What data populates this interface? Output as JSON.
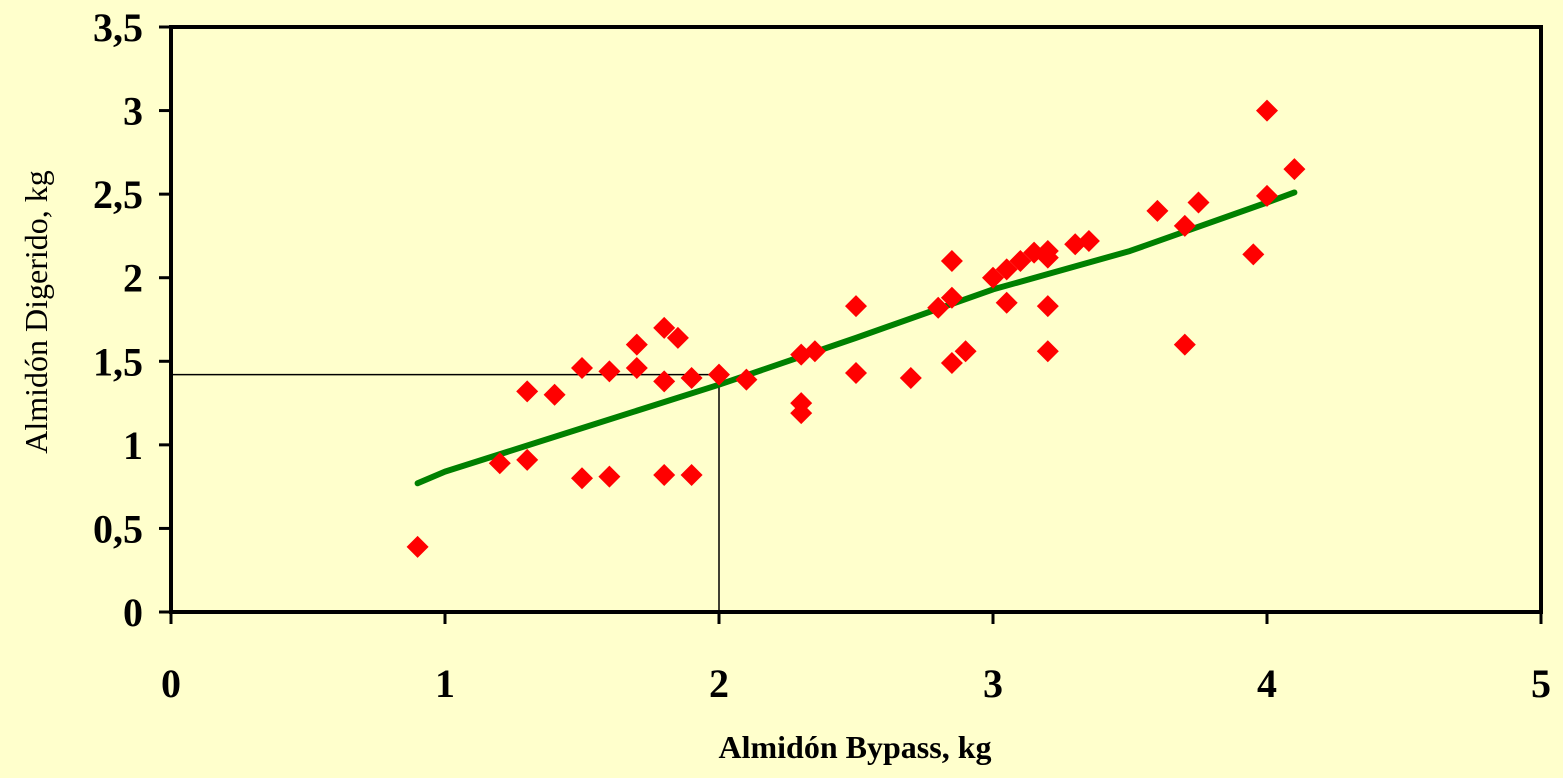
{
  "chart_data": {
    "type": "scatter",
    "title": "",
    "xlabel": "Almidón Bypass, kg",
    "ylabel": "Almidón Digerido, kg",
    "xlim": [
      0,
      5
    ],
    "ylim": [
      0,
      3.5
    ],
    "x_ticks": [
      "0",
      "1",
      "2",
      "3",
      "4",
      "5"
    ],
    "y_ticks": [
      "0",
      "0,5",
      "1",
      "1,5",
      "2",
      "2,5",
      "3",
      "3,5"
    ],
    "grid": false,
    "legend": "none",
    "colors": {
      "background": "#ffffcc",
      "points": "#ff0000",
      "trend": "#008000",
      "axes": "#000000"
    },
    "series": [
      {
        "type": "scatter",
        "marker": "diamond",
        "points": [
          [
            0.9,
            0.39
          ],
          [
            1.2,
            0.89
          ],
          [
            1.3,
            0.91
          ],
          [
            1.3,
            1.32
          ],
          [
            1.4,
            1.3
          ],
          [
            1.5,
            1.46
          ],
          [
            1.5,
            0.8
          ],
          [
            1.6,
            1.44
          ],
          [
            1.6,
            0.81
          ],
          [
            1.7,
            1.6
          ],
          [
            1.7,
            1.46
          ],
          [
            1.8,
            1.7
          ],
          [
            1.8,
            1.38
          ],
          [
            1.8,
            0.82
          ],
          [
            1.85,
            1.64
          ],
          [
            1.9,
            1.4
          ],
          [
            1.9,
            0.82
          ],
          [
            2.0,
            1.42
          ],
          [
            2.1,
            1.39
          ],
          [
            2.3,
            1.54
          ],
          [
            2.3,
            1.25
          ],
          [
            2.3,
            1.19
          ],
          [
            2.35,
            1.56
          ],
          [
            2.5,
            1.83
          ],
          [
            2.5,
            1.43
          ],
          [
            2.7,
            1.4
          ],
          [
            2.8,
            1.82
          ],
          [
            2.85,
            2.1
          ],
          [
            2.85,
            1.88
          ],
          [
            2.85,
            1.49
          ],
          [
            2.9,
            1.56
          ],
          [
            3.0,
            2.0
          ],
          [
            3.05,
            2.05
          ],
          [
            3.05,
            1.85
          ],
          [
            3.1,
            2.1
          ],
          [
            3.15,
            2.15
          ],
          [
            3.2,
            2.16
          ],
          [
            3.2,
            2.12
          ],
          [
            3.2,
            1.83
          ],
          [
            3.2,
            1.56
          ],
          [
            3.3,
            2.2
          ],
          [
            3.35,
            2.22
          ],
          [
            3.6,
            2.4
          ],
          [
            3.7,
            2.31
          ],
          [
            3.7,
            1.6
          ],
          [
            3.75,
            2.45
          ],
          [
            3.95,
            2.14
          ],
          [
            4.0,
            3.0
          ],
          [
            4.0,
            2.49
          ],
          [
            4.1,
            2.65
          ]
        ]
      },
      {
        "type": "line",
        "points": [
          [
            0.9,
            0.77
          ],
          [
            1.0,
            0.84
          ],
          [
            1.5,
            1.1
          ],
          [
            2.0,
            1.36
          ],
          [
            2.5,
            1.64
          ],
          [
            3.0,
            1.93
          ],
          [
            3.5,
            2.16
          ],
          [
            4.0,
            2.45
          ],
          [
            4.1,
            2.51
          ]
        ]
      }
    ],
    "annotations": [
      {
        "type": "reference-lines",
        "x": 2.0,
        "y": 1.42
      }
    ]
  }
}
